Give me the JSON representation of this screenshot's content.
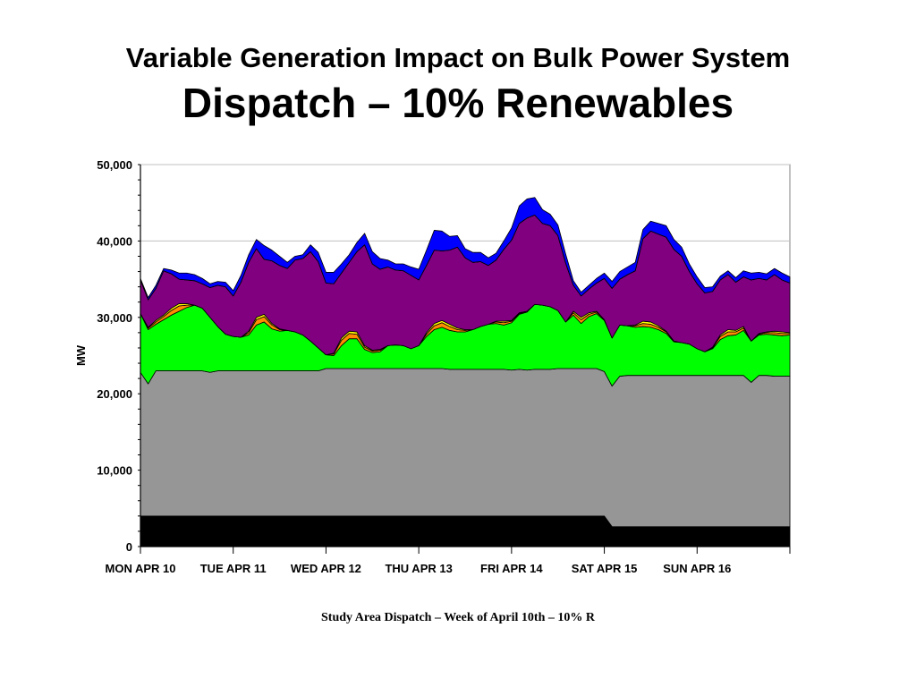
{
  "slide": {
    "title_line1": "Variable Generation Impact on Bulk Power System",
    "title_line2": "Dispatch – 10% Renewables",
    "caption": "Study Area Dispatch – Week of April 10th – 10% R"
  },
  "chart_data": {
    "type": "area",
    "stacked": true,
    "ylabel": "MW",
    "xlabel": "",
    "ylim": [
      0,
      50000
    ],
    "yticks": [
      "0",
      "10,000",
      "20,000",
      "30,000",
      "40,000",
      "50,000"
    ],
    "day_labels": [
      "MON APR 10",
      "TUE APR 11",
      "WED APR 12",
      "THU APR 13",
      "FRI APR 14",
      "SAT APR 15",
      "SUN APR 16"
    ],
    "grid": "horizontal",
    "legend": "none",
    "x_hours": [
      0,
      2,
      4,
      6,
      8,
      10,
      12,
      14,
      16,
      18,
      20,
      22,
      24,
      26,
      28,
      30,
      32,
      34,
      36,
      38,
      40,
      42,
      44,
      46,
      48,
      50,
      52,
      54,
      56,
      58,
      60,
      62,
      64,
      66,
      68,
      70,
      72,
      74,
      76,
      78,
      80,
      82,
      84,
      86,
      88,
      90,
      92,
      94,
      96,
      98,
      100,
      102,
      104,
      106,
      108,
      110,
      112,
      114,
      116,
      118,
      120,
      122,
      124,
      126,
      128,
      130,
      132,
      134,
      136,
      138,
      140,
      142,
      144,
      146,
      148,
      150,
      152,
      154,
      156,
      158,
      160,
      162,
      164,
      166,
      168
    ],
    "series": [
      {
        "color": "#000000",
        "values": [
          4000,
          4000,
          4000,
          4000,
          4000,
          4000,
          4000,
          4000,
          4000,
          4000,
          4000,
          4000,
          4000,
          4000,
          4000,
          4000,
          4000,
          4000,
          4000,
          4000,
          4000,
          4000,
          4000,
          4000,
          4000,
          4000,
          4000,
          4000,
          4000,
          4000,
          4000,
          4000,
          4000,
          4000,
          4000,
          4000,
          4000,
          4000,
          4000,
          4000,
          4000,
          4000,
          4000,
          4000,
          4000,
          4000,
          4000,
          4000,
          4000,
          4000,
          4000,
          4000,
          4000,
          4000,
          4000,
          4000,
          4000,
          4000,
          4000,
          4000,
          4000,
          2600,
          2600,
          2600,
          2600,
          2600,
          2600,
          2600,
          2600,
          2600,
          2600,
          2600,
          2600,
          2600,
          2600,
          2600,
          2600,
          2600,
          2600,
          2600,
          2600,
          2600,
          2600,
          2600,
          2600
        ]
      },
      {
        "color": "#969696",
        "values": [
          18800,
          17300,
          19000,
          19000,
          19000,
          19000,
          19000,
          19000,
          19000,
          18800,
          19000,
          19000,
          19000,
          19000,
          19000,
          19000,
          19000,
          19000,
          19000,
          19000,
          19000,
          19000,
          19000,
          19000,
          19300,
          19300,
          19300,
          19300,
          19300,
          19300,
          19300,
          19300,
          19300,
          19300,
          19300,
          19300,
          19300,
          19300,
          19300,
          19300,
          19200,
          19200,
          19200,
          19200,
          19200,
          19200,
          19200,
          19200,
          19100,
          19200,
          19100,
          19200,
          19200,
          19200,
          19300,
          19300,
          19300,
          19300,
          19300,
          19300,
          18900,
          18400,
          19700,
          19800,
          19800,
          19800,
          19800,
          19800,
          19800,
          19800,
          19800,
          19800,
          19800,
          19800,
          19800,
          19800,
          19800,
          19800,
          19800,
          18900,
          19800,
          19800,
          19700,
          19700,
          19700
        ]
      },
      {
        "color": "#00ff00",
        "values": [
          7700,
          7100,
          6100,
          6700,
          7300,
          7800,
          8300,
          8600,
          8200,
          7200,
          5800,
          4800,
          4500,
          4400,
          4700,
          6000,
          6400,
          5500,
          5200,
          5300,
          5100,
          4700,
          3900,
          3000,
          1800,
          1700,
          3000,
          3900,
          3900,
          2500,
          2100,
          2200,
          3000,
          3100,
          3000,
          2600,
          3000,
          4200,
          5100,
          5400,
          5100,
          4900,
          4900,
          5200,
          5600,
          5900,
          6000,
          5800,
          6200,
          7200,
          7600,
          8500,
          8400,
          8200,
          7600,
          6100,
          7000,
          5900,
          6800,
          7200,
          6700,
          6300,
          6700,
          6500,
          6300,
          6400,
          6300,
          6000,
          5500,
          4400,
          4300,
          4100,
          3500,
          3100,
          3500,
          4700,
          5200,
          5300,
          5900,
          5400,
          5300,
          5400,
          5400,
          5300,
          5400
        ]
      },
      {
        "color": "#ff8c00",
        "values": [
          0,
          200,
          300,
          400,
          600,
          700,
          300,
          0,
          0,
          0,
          0,
          0,
          0,
          0,
          300,
          700,
          700,
          500,
          200,
          0,
          0,
          0,
          0,
          0,
          0,
          200,
          700,
          700,
          600,
          300,
          200,
          200,
          0,
          0,
          0,
          0,
          0,
          300,
          500,
          600,
          500,
          300,
          200,
          0,
          0,
          0,
          200,
          300,
          200,
          100,
          100,
          0,
          0,
          0,
          0,
          0,
          300,
          500,
          300,
          200,
          100,
          0,
          0,
          0,
          200,
          400,
          400,
          300,
          200,
          100,
          0,
          0,
          0,
          0,
          100,
          400,
          500,
          400,
          300,
          0,
          100,
          200,
          300,
          300,
          200
        ]
      },
      {
        "color": "#ffff00",
        "values": [
          0,
          100,
          200,
          200,
          300,
          300,
          200,
          0,
          0,
          0,
          0,
          0,
          0,
          0,
          200,
          300,
          300,
          200,
          100,
          0,
          0,
          0,
          0,
          0,
          0,
          100,
          300,
          300,
          300,
          200,
          100,
          100,
          0,
          0,
          0,
          0,
          0,
          200,
          300,
          300,
          300,
          200,
          100,
          0,
          0,
          0,
          100,
          200,
          100,
          100,
          0,
          0,
          0,
          0,
          0,
          0,
          200,
          300,
          200,
          100,
          0,
          0,
          0,
          0,
          100,
          300,
          300,
          200,
          100,
          0,
          0,
          0,
          0,
          0,
          100,
          200,
          300,
          200,
          200,
          0,
          100,
          100,
          200,
          200,
          100
        ]
      },
      {
        "color": "#800080",
        "values": [
          4400,
          3600,
          4200,
          5800,
          4500,
          3200,
          3100,
          3200,
          3200,
          3900,
          5400,
          6200,
          5300,
          7200,
          9000,
          9000,
          7200,
          8200,
          8300,
          8100,
          9400,
          10000,
          11700,
          11300,
          9400,
          9100,
          8500,
          9000,
          10500,
          13200,
          11300,
          10500,
          10300,
          9800,
          9800,
          9600,
          8600,
          8800,
          9600,
          9100,
          9700,
          10600,
          9400,
          8800,
          8500,
          7700,
          8000,
          9400,
          10500,
          11700,
          12200,
          11700,
          10700,
          10600,
          9800,
          7700,
          3400,
          2800,
          3100,
          3700,
          5400,
          6500,
          6000,
          6700,
          7100,
          10800,
          11900,
          12000,
          12300,
          12000,
          11300,
          9500,
          8500,
          7700,
          7300,
          7200,
          7200,
          6300,
          6500,
          8000,
          7200,
          6800,
          7400,
          6800,
          6500
        ]
      },
      {
        "color": "#ff0000",
        "values": [
          0,
          0,
          0,
          0,
          0,
          0,
          0,
          0,
          0,
          0,
          0,
          0,
          0,
          0,
          0,
          0,
          0,
          0,
          0,
          0,
          0,
          0,
          0,
          0,
          0,
          0,
          0,
          0,
          0,
          0,
          0,
          0,
          0,
          0,
          0,
          0,
          0,
          0,
          0,
          0,
          0,
          0,
          0,
          0,
          0,
          0,
          0,
          0,
          0,
          0,
          0,
          0,
          0,
          0,
          0,
          0,
          0,
          0,
          0,
          0,
          0,
          0,
          0,
          0,
          0,
          0,
          0,
          0,
          0,
          0,
          0,
          0,
          0,
          0,
          0,
          0,
          0,
          0,
          0,
          0,
          0,
          0,
          0,
          0,
          0
        ]
      },
      {
        "color": "#0000ff",
        "values": [
          200,
          300,
          400,
          300,
          500,
          800,
          900,
          800,
          700,
          500,
          500,
          600,
          700,
          900,
          1000,
          1200,
          1800,
          1400,
          1200,
          800,
          500,
          500,
          900,
          1200,
          1400,
          1500,
          1200,
          1000,
          1200,
          1500,
          1600,
          1400,
          900,
          800,
          900,
          1100,
          1400,
          2000,
          2600,
          2600,
          1800,
          1500,
          1200,
          1300,
          1200,
          1000,
          900,
          1100,
          1600,
          2300,
          2500,
          2300,
          1800,
          1500,
          1400,
          1200,
          600,
          500,
          500,
          600,
          700,
          900,
          1000,
          1000,
          1100,
          1200,
          1300,
          1400,
          1500,
          1300,
          1200,
          1000,
          900,
          700,
          600,
          500,
          500,
          600,
          800,
          900,
          800,
          800,
          800,
          900,
          800
        ]
      }
    ]
  }
}
